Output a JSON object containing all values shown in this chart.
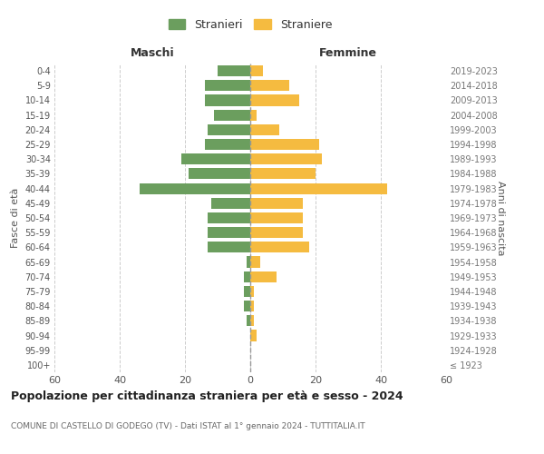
{
  "age_groups": [
    "100+",
    "95-99",
    "90-94",
    "85-89",
    "80-84",
    "75-79",
    "70-74",
    "65-69",
    "60-64",
    "55-59",
    "50-54",
    "45-49",
    "40-44",
    "35-39",
    "30-34",
    "25-29",
    "20-24",
    "15-19",
    "10-14",
    "5-9",
    "0-4"
  ],
  "birth_years": [
    "≤ 1923",
    "1924-1928",
    "1929-1933",
    "1934-1938",
    "1939-1943",
    "1944-1948",
    "1949-1953",
    "1954-1958",
    "1959-1963",
    "1964-1968",
    "1969-1973",
    "1974-1978",
    "1979-1983",
    "1984-1988",
    "1989-1993",
    "1994-1998",
    "1999-2003",
    "2004-2008",
    "2009-2013",
    "2014-2018",
    "2019-2023"
  ],
  "males": [
    0,
    0,
    0,
    1,
    2,
    2,
    2,
    1,
    13,
    13,
    13,
    12,
    34,
    19,
    21,
    14,
    13,
    11,
    14,
    14,
    10
  ],
  "females": [
    0,
    0,
    2,
    1,
    1,
    1,
    8,
    3,
    18,
    16,
    16,
    16,
    42,
    20,
    22,
    21,
    9,
    2,
    15,
    12,
    4
  ],
  "male_color": "#6b9e5e",
  "female_color": "#f5bb40",
  "center_line_color": "#999999",
  "grid_color": "#cccccc",
  "background_color": "#ffffff",
  "title": "Popolazione per cittadinanza straniera per età e sesso - 2024",
  "subtitle": "COMUNE DI CASTELLO DI GODEGO (TV) - Dati ISTAT al 1° gennaio 2024 - TUTTITALIA.IT",
  "xlabel_left": "Maschi",
  "xlabel_right": "Femmine",
  "ylabel_left": "Fasce di età",
  "ylabel_right": "Anni di nascita",
  "legend_stranieri": "Stranieri",
  "legend_straniere": "Straniere",
  "xlim": 60,
  "bar_height": 0.75
}
